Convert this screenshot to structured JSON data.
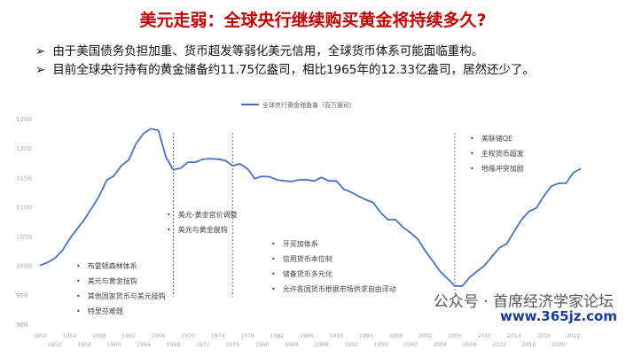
{
  "header": {
    "title": "美元走弱：全球央行继续购买黄金将持续多久?"
  },
  "bullets": [
    "由于美国债务负担加重、货币超发等弱化美元信用，全球货币体系可能面临重构。",
    "目前全球央行持有的黄金储备约11.75亿盎司，相比1965年的12.33亿盎司，居然还少了。"
  ],
  "bullet_marker": "➢",
  "annotations": {
    "a1": [
      "布雷顿森林体系",
      "美元与黄金挂钩",
      "其他国家货币与美元挂钩",
      "特里芬难题"
    ],
    "a2": [
      "美元-黄金官价调整",
      "美元与黄金脱钩"
    ],
    "a3": [
      "牙买加体系",
      "信用货币本位制",
      "储备货币多元化",
      "允许各国货币根据市场供求自由浮动"
    ],
    "a4": [
      "美联储QE",
      "主权货币超发",
      "地缘冲突加剧"
    ]
  },
  "watermark": "公众号 · 首席经济学家论坛",
  "site": "www.365jz.com",
  "chart_data": {
    "type": "line",
    "title": "",
    "xlabel": "",
    "ylabel": "",
    "legend": "全球央行黄金储备量（百万盎司）",
    "legend_position": "top",
    "ylim": [
      900,
      1250
    ],
    "yticks": [
      900,
      950,
      1000,
      1050,
      1100,
      1150,
      1200,
      1250
    ],
    "x_start": 1950,
    "x_end": 2023,
    "xtick_step": 2,
    "dividers": [
      1968,
      1976,
      2006
    ],
    "color": "#4472c4",
    "values": [
      1000,
      1005,
      1012,
      1025,
      1045,
      1062,
      1078,
      1098,
      1118,
      1145,
      1153,
      1170,
      1180,
      1208,
      1225,
      1233,
      1230,
      1185,
      1163,
      1166,
      1176,
      1176,
      1181,
      1182,
      1181,
      1179,
      1170,
      1173,
      1165,
      1148,
      1152,
      1151,
      1146,
      1144,
      1143,
      1146,
      1146,
      1144,
      1150,
      1144,
      1144,
      1130,
      1125,
      1118,
      1112,
      1107,
      1090,
      1078,
      1078,
      1065,
      1056,
      1045,
      1025,
      1008,
      990,
      978,
      965,
      965,
      980,
      990,
      1000,
      1015,
      1030,
      1037,
      1058,
      1078,
      1092,
      1098,
      1118,
      1135,
      1140,
      1140,
      1158,
      1165
    ]
  }
}
